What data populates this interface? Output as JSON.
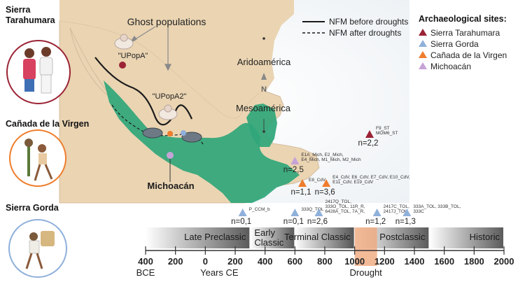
{
  "left_panel": {
    "tarahumara": "Sierra\nTarahumara",
    "canada": "Cañada de la Virgen",
    "gorda": "Sierra Gorda"
  },
  "map": {
    "ghost_title": "Ghost populations",
    "upopa": "\"UPopA\"",
    "upopa2": "\"UPopA2\"",
    "aridoamerica": "Aridoamérica",
    "mesoamerica": "Mesoamérica",
    "michoacan": "Michoacán",
    "north": "N",
    "legend_solid": "NFM before droughts",
    "legend_dashed": "NFM after droughts",
    "colors": {
      "land": "#ead4b2",
      "green": "#2fa67a",
      "path": "#1a1a1a"
    }
  },
  "sites": {
    "title": "Archaeological sites:",
    "items": [
      {
        "label": "Sierra Tarahumara",
        "color": "#9b2335"
      },
      {
        "label": "Sierra Gorda",
        "color": "#8fb0db"
      },
      {
        "label": "Cañada de la Virgen",
        "color": "#ef7d2c"
      },
      {
        "label": "Michoacán",
        "color": "#c6a3d6"
      }
    ]
  },
  "samples": [
    {
      "site": "Sierra Tarahumara",
      "year": 1100,
      "row": 0,
      "lines": [
        "F9_ST",
        "MOM6_ST"
      ],
      "n": "n=2,2"
    },
    {
      "site": "Michoacán",
      "year": 600,
      "row": 1,
      "lines": [
        "E1A_Mich, E2_Mich,",
        "E4_Mich, M1_Mich, M2_Mich"
      ],
      "n": "n=2,5"
    },
    {
      "site": "Cañada de la Virgen",
      "year": 650,
      "row": 2,
      "lines": [
        "E8_CdV"
      ],
      "n": "n=1,1"
    },
    {
      "site": "Cañada de la Virgen",
      "year": 810,
      "row": 2,
      "lines": [
        "E4_CdV, E6_CdV, E7_CdV, E10_CdV,",
        "E11_CdV, E19_CdV"
      ],
      "n": "n=3,6"
    },
    {
      "site": "Sierra Gorda",
      "year": 250,
      "row": 3,
      "lines": [
        "P_CCM_b"
      ],
      "n": "n=0,1"
    },
    {
      "site": "Sierra Gorda",
      "year": 600,
      "row": 3,
      "lines": [
        "333Q_TOL"
      ],
      "n": "n=0,1"
    },
    {
      "site": "Sierra Gorda",
      "year": 760,
      "row": 3,
      "lines": [
        "2417Q_TOL,",
        "333O_TOL, 11R_R,",
        "6428A_TOL, 7A_R,"
      ],
      "n": "n=2,6"
    },
    {
      "site": "Sierra Gorda",
      "year": 1150,
      "row": 3,
      "lines": [
        "2417C_TOL,",
        "2417J_TOL"
      ],
      "n": "n=1,2"
    },
    {
      "site": "Sierra Gorda",
      "year": 1350,
      "row": 3,
      "lines": [
        "333A_TOL, 333B_TOL,",
        "333C"
      ],
      "n": "n=1,3"
    }
  ],
  "timeline": {
    "periods": [
      {
        "label": "Late Preclassic",
        "start": -400,
        "end": 300
      },
      {
        "label": "Early\nClassic",
        "start": 300,
        "end": 600
      },
      {
        "label": "Terminal Classic",
        "start": 600,
        "end": 1000
      },
      {
        "label": "Postclassic",
        "start": 1000,
        "end": 1500
      },
      {
        "label": "Historic",
        "start": 1500,
        "end": 2000
      }
    ],
    "drought": {
      "label": "Drought",
      "start": 1000,
      "end": 1150,
      "color": "#f0a77b"
    },
    "ticks": [
      {
        "v": -400,
        "label": "400"
      },
      {
        "v": -200,
        "label": "200"
      },
      {
        "v": 0,
        "label": "0"
      },
      {
        "v": 200,
        "label": "200"
      },
      {
        "v": 400,
        "label": "400"
      },
      {
        "v": 600,
        "label": "600"
      },
      {
        "v": 800,
        "label": "800"
      },
      {
        "v": 1000,
        "label": "1000"
      },
      {
        "v": 1200,
        "label": "1200"
      },
      {
        "v": 1400,
        "label": "1400"
      },
      {
        "v": 1600,
        "label": "1600"
      },
      {
        "v": 1800,
        "label": "1800"
      },
      {
        "v": 2000,
        "label": "2000"
      }
    ],
    "bce_label": "BCE",
    "ce_label": "Years CE"
  }
}
